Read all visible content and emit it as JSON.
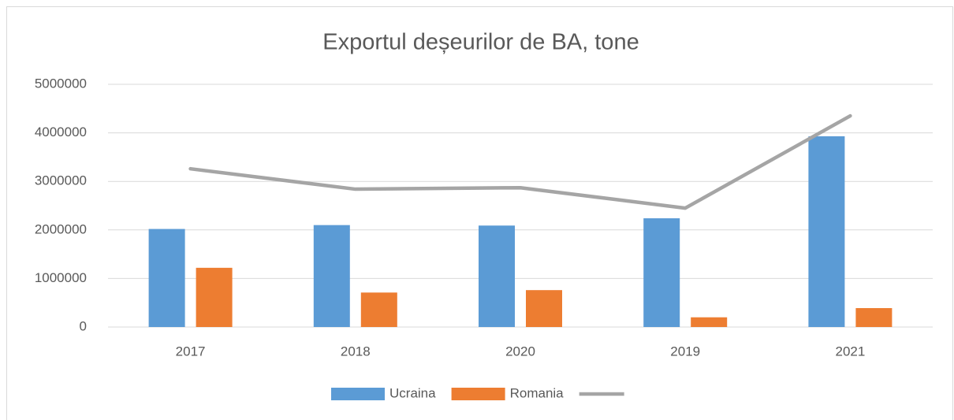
{
  "chart_data": {
    "type": "bar",
    "title": "Exportul deșeurilor de BA, tone",
    "categories": [
      "2017",
      "2018",
      "2020",
      "2019",
      "2021"
    ],
    "series": [
      {
        "name": "Ucraina",
        "color": "#5b9bd5",
        "values": [
          2020000,
          2100000,
          2090000,
          2240000,
          3930000
        ]
      },
      {
        "name": "Romania",
        "color": "#ed7d31",
        "values": [
          1220000,
          710000,
          760000,
          200000,
          390000
        ]
      },
      {
        "type": "line",
        "color": "#a5a5a5",
        "values": [
          3260000,
          2840000,
          2870000,
          2450000,
          4350000
        ]
      }
    ],
    "ylim": [
      0,
      5000000
    ],
    "yticks": [
      0,
      1000000,
      2000000,
      3000000,
      4000000,
      5000000
    ],
    "grid": true,
    "legend": "bottom"
  }
}
